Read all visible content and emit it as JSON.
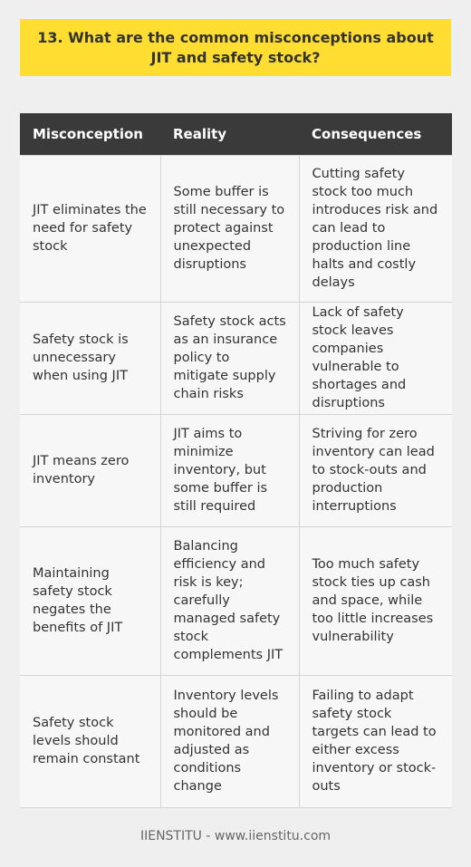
{
  "title": "13. What are the common misconceptions about JIT and safety stock?",
  "table": {
    "headers": [
      "Misconception",
      "Reality",
      "Consequences"
    ],
    "rows": [
      [
        "JIT eliminates the need for safety stock",
        "Some buffer is still necessary to protect against unexpected disruptions",
        "Cutting safety stock too much introduces risk and can lead to production line halts and costly delays"
      ],
      [
        "Safety stock is unnecessary when using JIT",
        "Safety stock acts as an insurance policy to mitigate supply chain risks",
        "Lack of safety stock leaves companies vulnerable to shortages and disruptions"
      ],
      [
        "JIT means zero inventory",
        "JIT aims to minimize inventory, but some buffer is still required",
        "Striving for zero inventory can lead to stock-outs and production interruptions"
      ],
      [
        "Maintaining safety stock negates the benefits of JIT",
        "Balancing efficiency and risk is key; carefully managed safety stock complements JIT",
        "Too much safety stock ties up cash and space, while too little increases vulnerability"
      ],
      [
        "Safety stock levels should remain constant",
        "Inventory levels should be monitored and adjusted as conditions change",
        "Failing to adapt safety stock targets can lead to either excess inventory or stock-outs"
      ]
    ]
  },
  "footer": "IIENSTITU - www.iienstitu.com",
  "colors": {
    "title_bg": "#ffdd31",
    "header_bg": "#3a3a3a",
    "page_bg": "#efefef"
  }
}
